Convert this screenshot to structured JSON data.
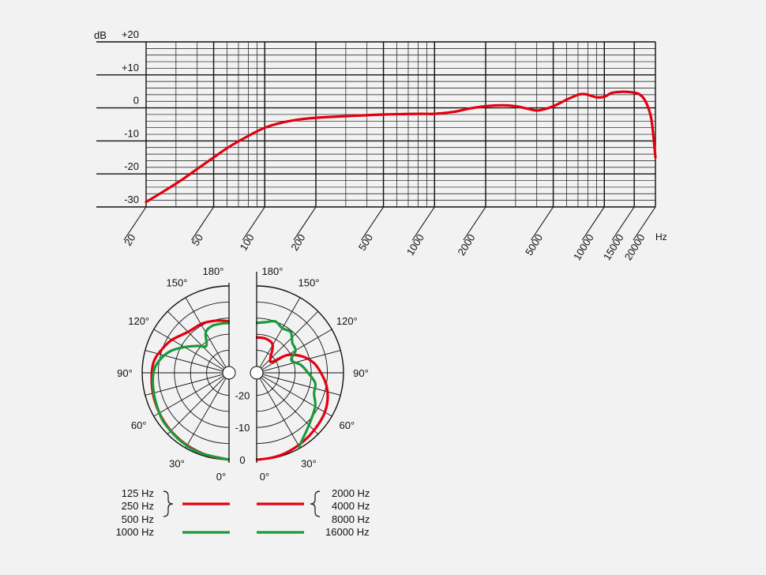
{
  "chart_data": [
    {
      "type": "line",
      "ylabel": "dB",
      "xlabel": "Hz",
      "x_scale": "log",
      "xlim": [
        20,
        20000
      ],
      "ylim": [
        -30,
        20
      ],
      "x_ticks": [
        20,
        50,
        100,
        200,
        500,
        1000,
        2000,
        5000,
        10000,
        15000,
        20000
      ],
      "x_tick_labels": [
        "20",
        "50",
        "100",
        "200",
        "500",
        "1000",
        "2000",
        "5000",
        "10000",
        "15000",
        "20000"
      ],
      "y_ticks": [
        20,
        10,
        0,
        -10,
        -20,
        -30
      ],
      "y_tick_labels": [
        "+20",
        "+10",
        "0",
        "-10",
        "-20",
        "-30"
      ],
      "grid": true,
      "series": [
        {
          "color": "#e3000f",
          "x": [
            20,
            25,
            32,
            40,
            50,
            63,
            80,
            100,
            125,
            160,
            200,
            300,
            500,
            800,
            1000,
            1300,
            1600,
            2000,
            2500,
            3000,
            3500,
            4000,
            4500,
            5000,
            5500,
            6000,
            6500,
            7000,
            7500,
            8000,
            9000,
            10000,
            11000,
            12000,
            13000,
            14000,
            15000,
            16000,
            17000,
            18000,
            19000,
            20000
          ],
          "y": [
            -28.5,
            -25.5,
            -22,
            -18.5,
            -15,
            -11.5,
            -8.5,
            -6,
            -4.5,
            -3.5,
            -3,
            -2.5,
            -2,
            -1.8,
            -1.8,
            -1.2,
            -0.2,
            0.5,
            0.8,
            0.5,
            -0.2,
            -0.8,
            -0.3,
            0.5,
            1.5,
            2.5,
            3.3,
            4,
            4.2,
            4,
            3.2,
            3.4,
            4.5,
            4.8,
            4.9,
            4.8,
            4.6,
            4.2,
            3,
            0.5,
            -4,
            -15
          ]
        }
      ]
    },
    {
      "type": "polar",
      "angle_labels": [
        "0°",
        "30°",
        "60°",
        "90°",
        "120°",
        "150°",
        "180°"
      ],
      "radial_labels": [
        "0",
        "-10",
        "-20"
      ],
      "r_range_db": [
        -25,
        0
      ],
      "left_half": {
        "series": [
          {
            "name": "125 Hz, 250 Hz, 500 Hz",
            "color": "#e3000f",
            "angles_deg": [
              0,
              15,
              30,
              45,
              60,
              75,
              90,
              100,
              110,
              120,
              135,
              150,
              160,
              170,
              180
            ],
            "values_db": [
              0,
              -0.5,
              -1,
              -1.5,
              -2,
              -2.5,
              -3,
              -3.5,
              -5,
              -6.5,
              -9,
              -9.5,
              -10,
              -10.5,
              -11
            ]
          },
          {
            "name": "1000 Hz",
            "color": "#1a9a3c",
            "angles_deg": [
              0,
              20,
              35,
              50,
              60,
              75,
              90,
              100,
              110,
              120,
              130,
              140,
              150,
              160,
              170,
              180
            ],
            "values_db": [
              0,
              -0.5,
              -1,
              -1.5,
              -2,
              -2.8,
              -3.5,
              -5,
              -7.5,
              -11,
              -14,
              -16,
              -12.5,
              -11.5,
              -11.5,
              -11.5
            ]
          }
        ]
      },
      "right_half": {
        "series": [
          {
            "name": "2000 Hz, 4000 Hz, 8000 Hz",
            "color": "#e3000f",
            "angles_deg": [
              0,
              10,
              20,
              30,
              40,
              50,
              60,
              70,
              80,
              90,
              100,
              110,
              120,
              125,
              135,
              150,
              165,
              180
            ],
            "values_db": [
              0,
              -0.2,
              -0.5,
              -1,
              -1.5,
              -2,
              -2.5,
              -3.5,
              -5,
              -7,
              -9,
              -12,
              -16,
              -21,
              -21,
              -17,
              -16,
              -16
            ]
          },
          {
            "name": "16000 Hz",
            "color": "#1a9a3c",
            "angles_deg": [
              30,
              35,
              45,
              60,
              70,
              80,
              90,
              100,
              110,
              120,
              130,
              140,
              150,
              160,
              170,
              180
            ],
            "values_db": [
              -0.5,
              -2,
              -4,
              -6,
              -8,
              -8.5,
              -11,
              -13,
              -15.5,
              -13,
              -12.5,
              -10.5,
              -11,
              -10,
              -11,
              -11.5
            ]
          }
        ]
      }
    }
  ],
  "legend": {
    "left": {
      "grouped": [
        "125 Hz",
        "250 Hz",
        "500 Hz"
      ],
      "single": "1000 Hz",
      "grouped_color": "#e3000f",
      "single_color": "#1a9a3c"
    },
    "right": {
      "grouped": [
        "2000 Hz",
        "4000 Hz",
        "8000 Hz"
      ],
      "single": "16000 Hz",
      "grouped_color": "#e3000f",
      "single_color": "#1a9a3c"
    }
  }
}
